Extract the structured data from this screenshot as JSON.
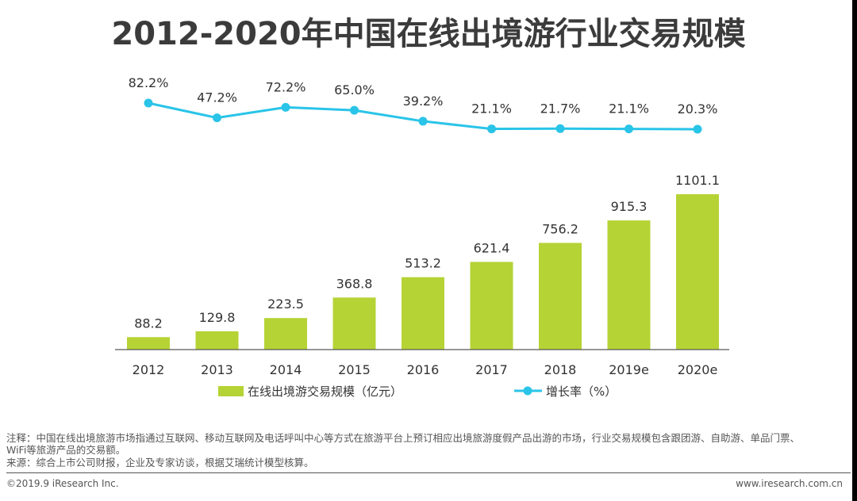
{
  "title": "2012-2020年中国在线出境游行业交易规模",
  "colors": {
    "bar": "#b5d335",
    "line": "#29c4e8",
    "axis": "#595959",
    "text": "#333333"
  },
  "chart_data": {
    "type": "bar",
    "categories": [
      "2012",
      "2013",
      "2014",
      "2015",
      "2016",
      "2017",
      "2018",
      "2019e",
      "2020e"
    ],
    "series": [
      {
        "name": "在线出境游交易规模（亿元）",
        "type": "bar",
        "values": [
          88.2,
          129.8,
          223.5,
          368.8,
          513.2,
          621.4,
          756.2,
          915.3,
          1101.1
        ],
        "labels": [
          "88.2",
          "129.8",
          "223.5",
          "368.8",
          "513.2",
          "621.4",
          "756.2",
          "915.3",
          "1101.1"
        ]
      },
      {
        "name": "增长率（%）",
        "type": "line",
        "values": [
          82.2,
          47.2,
          72.2,
          65.0,
          39.2,
          21.1,
          21.7,
          21.1,
          20.3
        ],
        "labels": [
          "82.2%",
          "47.2%",
          "72.2%",
          "65.0%",
          "39.2%",
          "21.1%",
          "21.7%",
          "21.1%",
          "20.3%"
        ]
      }
    ],
    "legend": "bottom"
  },
  "notes": {
    "note1": "注释：中国在线出境旅游市场指通过互联网、移动互联网及电话呼叫中心等方式在旅游平台上预订相应出境旅游度假产品出游的市场，行业交易规模包含跟团游、自助游、单品门票、",
    "note2": "WiFi等旅游产品的交易额。",
    "source": "来源：综合上市公司财报，企业及专家访谈，根据艾瑞统计模型核算。"
  },
  "footer": {
    "copyright": "©2019.9 iResearch Inc.",
    "url": "www.iresearch.com.cn"
  }
}
